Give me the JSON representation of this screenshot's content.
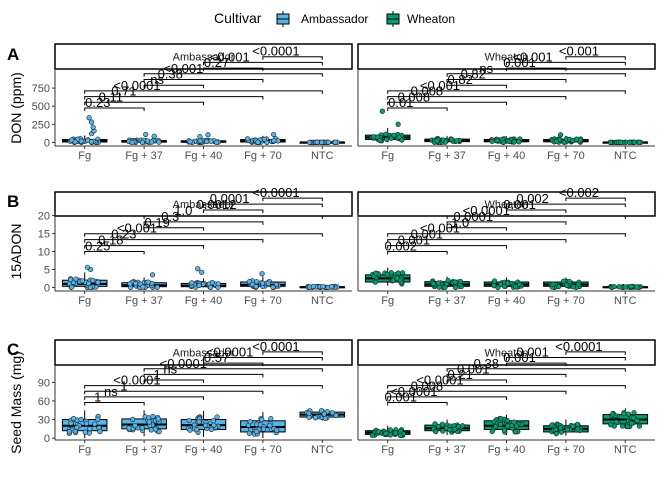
{
  "legend": {
    "title": "Cultivar",
    "position": "top",
    "items": [
      {
        "label": "Ambassador",
        "color": "#56B4E9"
      },
      {
        "label": "Wheaton",
        "color": "#009E73"
      }
    ]
  },
  "chart_data": [
    {
      "type": "box",
      "panel_tag": "A",
      "ylabel": "DON (ppm)",
      "xlabel": "",
      "ylim": [
        -50,
        1000
      ],
      "yticks": [
        0,
        250,
        500,
        750
      ],
      "categories": [
        "Fg",
        "Fg + 37",
        "Fg + 40",
        "Fg + 70",
        "NTC"
      ],
      "facets": [
        {
          "name": "Ambassador",
          "boxes": [
            {
              "category": "Fg",
              "q1": 5,
              "median": 20,
              "q3": 40,
              "min": 0,
              "max": 95,
              "outliers": [
                120,
                160,
                210,
                280,
                340
              ]
            },
            {
              "category": "Fg + 37",
              "q1": 3,
              "median": 12,
              "q3": 25,
              "min": 0,
              "max": 60,
              "outliers": [
                85,
                110
              ]
            },
            {
              "category": "Fg + 40",
              "q1": 2,
              "median": 10,
              "q3": 22,
              "min": 0,
              "max": 55,
              "outliers": [
                80,
                105
              ]
            },
            {
              "category": "Fg + 70",
              "q1": 5,
              "median": 20,
              "q3": 40,
              "min": 0,
              "max": 90,
              "outliers": [
                110
              ]
            },
            {
              "category": "NTC",
              "q1": 0,
              "median": 0,
              "q3": 2,
              "min": 0,
              "max": 5,
              "outliers": []
            }
          ],
          "comparisons": [
            {
              "from": "Fg",
              "to": "Fg + 37",
              "label": "0.23"
            },
            {
              "from": "Fg",
              "to": "Fg + 40",
              "label": "0.11"
            },
            {
              "from": "Fg",
              "to": "Fg + 70",
              "label": "0.71"
            },
            {
              "from": "Fg",
              "to": "NTC",
              "label": "<0.0001"
            },
            {
              "from": "Fg + 37",
              "to": "Fg + 40",
              "label": "ns"
            },
            {
              "from": "Fg + 37",
              "to": "Fg + 70",
              "label": "0.38"
            },
            {
              "from": "Fg + 37",
              "to": "NTC",
              "label": "<0.001"
            },
            {
              "from": "Fg + 40",
              "to": "Fg + 70",
              "label": "0.27"
            },
            {
              "from": "Fg + 40",
              "to": "NTC",
              "label": "<0.001"
            },
            {
              "from": "Fg + 70",
              "to": "NTC",
              "label": "<0.0001"
            }
          ]
        },
        {
          "name": "Wheaton",
          "boxes": [
            {
              "category": "Fg",
              "q1": 40,
              "median": 70,
              "q3": 100,
              "min": 0,
              "max": 200,
              "outliers": [
                250,
                430
              ]
            },
            {
              "category": "Fg + 37",
              "q1": 10,
              "median": 25,
              "q3": 45,
              "min": 0,
              "max": 90,
              "outliers": []
            },
            {
              "category": "Fg + 40",
              "q1": 8,
              "median": 20,
              "q3": 40,
              "min": 0,
              "max": 85,
              "outliers": []
            },
            {
              "category": "Fg + 70",
              "q1": 8,
              "median": 20,
              "q3": 40,
              "min": 0,
              "max": 90,
              "outliers": [
                105
              ]
            },
            {
              "category": "NTC",
              "q1": 0,
              "median": 0,
              "q3": 2,
              "min": 0,
              "max": 5,
              "outliers": []
            }
          ],
          "comparisons": [
            {
              "from": "Fg",
              "to": "Fg + 37",
              "label": "0.01"
            },
            {
              "from": "Fg",
              "to": "Fg + 40",
              "label": "0.008"
            },
            {
              "from": "Fg",
              "to": "Fg + 70",
              "label": "0.008"
            },
            {
              "from": "Fg",
              "to": "NTC",
              "label": "<0.001"
            },
            {
              "from": "Fg + 37",
              "to": "Fg + 40",
              "label": "0.82"
            },
            {
              "from": "Fg + 37",
              "to": "Fg + 70",
              "label": "0.82"
            },
            {
              "from": "Fg + 37",
              "to": "NTC",
              "label": "ns"
            },
            {
              "from": "Fg + 40",
              "to": "Fg + 70",
              "label": "0.001"
            },
            {
              "from": "Fg + 40",
              "to": "NTC",
              "label": "<0.001"
            },
            {
              "from": "Fg + 70",
              "to": "NTC",
              "label": "<0.001"
            }
          ]
        }
      ]
    },
    {
      "type": "box",
      "panel_tag": "B",
      "ylabel": "15ADON",
      "xlabel": "",
      "ylim": [
        -1,
        21
      ],
      "yticks": [
        0,
        5,
        10,
        15,
        20
      ],
      "categories": [
        "Fg",
        "Fg + 37",
        "Fg + 40",
        "Fg + 70",
        "NTC"
      ],
      "facets": [
        {
          "name": "Ambassador",
          "boxes": [
            {
              "category": "Fg",
              "q1": 0.3,
              "median": 1.0,
              "q3": 2.0,
              "min": 0,
              "max": 4.2,
              "outliers": [
                5.0,
                5.6
              ]
            },
            {
              "category": "Fg + 37",
              "q1": 0.2,
              "median": 0.6,
              "q3": 1.3,
              "min": 0,
              "max": 2.8,
              "outliers": [
                3.5
              ]
            },
            {
              "category": "Fg + 40",
              "q1": 0.2,
              "median": 0.5,
              "q3": 1.1,
              "min": 0,
              "max": 2.5,
              "outliers": [
                4.2,
                5.2
              ]
            },
            {
              "category": "Fg + 70",
              "q1": 0.3,
              "median": 0.7,
              "q3": 1.5,
              "min": 0,
              "max": 3.0,
              "outliers": [
                3.8
              ]
            },
            {
              "category": "NTC",
              "q1": 0,
              "median": 0.05,
              "q3": 0.2,
              "min": 0,
              "max": 0.4,
              "outliers": []
            }
          ],
          "comparisons": [
            {
              "from": "Fg",
              "to": "Fg + 37",
              "label": "0.25"
            },
            {
              "from": "Fg",
              "to": "Fg + 40",
              "label": "0.18"
            },
            {
              "from": "Fg",
              "to": "Fg + 70",
              "label": "0.23"
            },
            {
              "from": "Fg",
              "to": "NTC",
              "label": "<0.001"
            },
            {
              "from": "Fg + 37",
              "to": "Fg + 40",
              "label": "0.19"
            },
            {
              "from": "Fg + 37",
              "to": "Fg + 70",
              "label": "0.3"
            },
            {
              "from": "Fg + 37",
              "to": "NTC",
              "label": "1.0"
            },
            {
              "from": "Fg + 40",
              "to": "Fg + 70",
              "label": "0.0012"
            },
            {
              "from": "Fg + 40",
              "to": "NTC",
              "label": "0.0001"
            },
            {
              "from": "Fg + 70",
              "to": "NTC",
              "label": "<0.0001"
            }
          ]
        },
        {
          "name": "Wheaton",
          "boxes": [
            {
              "category": "Fg",
              "q1": 1.5,
              "median": 2.5,
              "q3": 3.5,
              "min": 0.5,
              "max": 5.5,
              "outliers": []
            },
            {
              "category": "Fg + 37",
              "q1": 0.3,
              "median": 0.8,
              "q3": 1.6,
              "min": 0,
              "max": 3.0,
              "outliers": []
            },
            {
              "category": "Fg + 40",
              "q1": 0.3,
              "median": 0.8,
              "q3": 1.5,
              "min": 0,
              "max": 2.8,
              "outliers": []
            },
            {
              "category": "Fg + 70",
              "q1": 0.3,
              "median": 0.8,
              "q3": 1.5,
              "min": 0,
              "max": 2.8,
              "outliers": []
            },
            {
              "category": "NTC",
              "q1": 0,
              "median": 0.05,
              "q3": 0.2,
              "min": 0,
              "max": 0.4,
              "outliers": []
            }
          ],
          "comparisons": [
            {
              "from": "Fg",
              "to": "Fg + 37",
              "label": "0.002"
            },
            {
              "from": "Fg",
              "to": "Fg + 40",
              "label": "0.001"
            },
            {
              "from": "Fg",
              "to": "Fg + 70",
              "label": "0.001"
            },
            {
              "from": "Fg",
              "to": "NTC",
              "label": "<0.001"
            },
            {
              "from": "Fg + 37",
              "to": "Fg + 40",
              "label": "1.0"
            },
            {
              "from": "Fg + 37",
              "to": "Fg + 70",
              "label": "0.0001"
            },
            {
              "from": "Fg + 37",
              "to": "NTC",
              "label": "<0.0001"
            },
            {
              "from": "Fg + 40",
              "to": "Fg + 70",
              "label": "0.001"
            },
            {
              "from": "Fg + 40",
              "to": "NTC",
              "label": "0.002"
            },
            {
              "from": "Fg + 70",
              "to": "NTC",
              "label": "<0.002"
            }
          ]
        }
      ]
    },
    {
      "type": "box",
      "panel_tag": "C",
      "ylabel": "Seed Mass (mg)",
      "xlabel": "",
      "ylim": [
        -3,
        118
      ],
      "yticks": [
        0,
        30,
        60,
        90
      ],
      "categories": [
        "Fg",
        "Fg + 37",
        "Fg + 40",
        "Fg + 70",
        "NTC"
      ],
      "facets": [
        {
          "name": "Ambassador",
          "boxes": [
            {
              "category": "Fg",
              "q1": 12,
              "median": 20,
              "q3": 30,
              "min": 0,
              "max": 45,
              "outliers": []
            },
            {
              "category": "Fg + 37",
              "q1": 15,
              "median": 22,
              "q3": 31,
              "min": 3,
              "max": 45,
              "outliers": []
            },
            {
              "category": "Fg + 40",
              "q1": 14,
              "median": 21,
              "q3": 30,
              "min": 2,
              "max": 44,
              "outliers": []
            },
            {
              "category": "Fg + 70",
              "q1": 10,
              "median": 18,
              "q3": 28,
              "min": 0,
              "max": 42,
              "outliers": []
            },
            {
              "category": "NTC",
              "q1": 34,
              "median": 38,
              "q3": 42,
              "min": 28,
              "max": 48,
              "outliers": []
            }
          ],
          "comparisons": [
            {
              "from": "Fg",
              "to": "Fg + 37",
              "label": "1"
            },
            {
              "from": "Fg",
              "to": "Fg + 40",
              "label": "ns"
            },
            {
              "from": "Fg",
              "to": "Fg + 70",
              "label": "1"
            },
            {
              "from": "Fg",
              "to": "NTC",
              "label": "<0.0001"
            },
            {
              "from": "Fg + 37",
              "to": "Fg + 40",
              "label": "1"
            },
            {
              "from": "Fg + 37",
              "to": "Fg + 70",
              "label": "ns"
            },
            {
              "from": "Fg + 37",
              "to": "NTC",
              "label": "<0.0001"
            },
            {
              "from": "Fg + 40",
              "to": "Fg + 70",
              "label": "0.57"
            },
            {
              "from": "Fg + 40",
              "to": "NTC",
              "label": "<0.0001"
            },
            {
              "from": "Fg + 70",
              "to": "NTC",
              "label": "<0.0001"
            }
          ]
        },
        {
          "name": "Wheaton",
          "boxes": [
            {
              "category": "Fg",
              "q1": 6,
              "median": 9,
              "q3": 12,
              "min": 2,
              "max": 20,
              "outliers": []
            },
            {
              "category": "Fg + 37",
              "q1": 12,
              "median": 16,
              "q3": 21,
              "min": 5,
              "max": 30,
              "outliers": []
            },
            {
              "category": "Fg + 40",
              "q1": 14,
              "median": 20,
              "q3": 28,
              "min": 5,
              "max": 38,
              "outliers": []
            },
            {
              "category": "Fg + 70",
              "q1": 10,
              "median": 15,
              "q3": 20,
              "min": 4,
              "max": 30,
              "outliers": []
            },
            {
              "category": "NTC",
              "q1": 23,
              "median": 30,
              "q3": 38,
              "min": 15,
              "max": 48,
              "outliers": []
            }
          ],
          "comparisons": [
            {
              "from": "Fg",
              "to": "Fg + 37",
              "label": "0.001"
            },
            {
              "from": "Fg",
              "to": "Fg + 40",
              "label": "<0.0001"
            },
            {
              "from": "Fg",
              "to": "Fg + 70",
              "label": "0.008"
            },
            {
              "from": "Fg",
              "to": "NTC",
              "label": "<0.0001"
            },
            {
              "from": "Fg + 37",
              "to": "Fg + 40",
              "label": "0.21"
            },
            {
              "from": "Fg + 37",
              "to": "Fg + 70",
              "label": "0.001"
            },
            {
              "from": "Fg + 37",
              "to": "NTC",
              "label": "0.38"
            },
            {
              "from": "Fg + 40",
              "to": "Fg + 70",
              "label": "0.001"
            },
            {
              "from": "Fg + 40",
              "to": "NTC",
              "label": "0.001"
            },
            {
              "from": "Fg + 70",
              "to": "NTC",
              "label": "<0.0001"
            }
          ]
        }
      ]
    }
  ]
}
